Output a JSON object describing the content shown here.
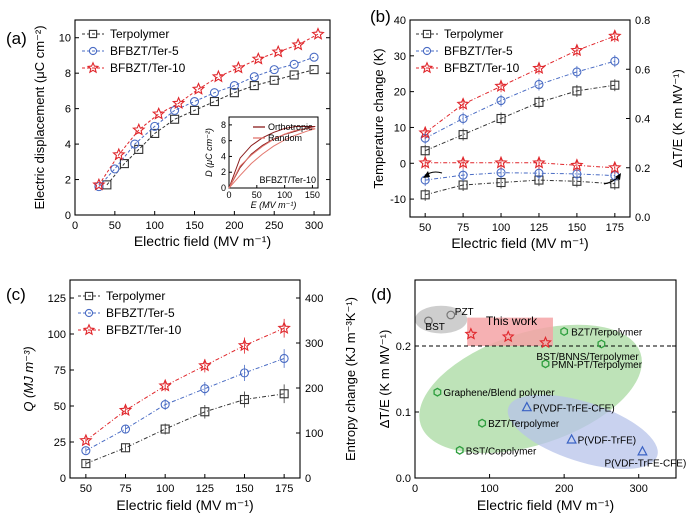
{
  "chart_data": [
    {
      "id": "a",
      "panel_label": "(a)",
      "type": "line",
      "xlabel": "Electric field (MV m⁻¹)",
      "ylabel": "Electric displacement (μC cm⁻²)",
      "xlim": [
        0,
        320
      ],
      "ylim": [
        0,
        11
      ],
      "xticks": [
        0,
        50,
        100,
        150,
        200,
        250,
        300
      ],
      "yticks": [
        0,
        2,
        4,
        6,
        8,
        10
      ],
      "legend": "top-left",
      "series": [
        {
          "name": "Terpolymer",
          "marker": "square",
          "color": "#333333",
          "x": [
            40,
            62,
            80,
            100,
            125,
            150,
            175,
            200,
            225,
            250,
            275,
            300
          ],
          "y": [
            1.7,
            2.9,
            3.7,
            4.6,
            5.4,
            5.9,
            6.4,
            6.9,
            7.3,
            7.6,
            7.9,
            8.2
          ]
        },
        {
          "name": "BFBZT/Ter-5",
          "marker": "circle",
          "color": "#4a6cc4",
          "x": [
            30,
            50,
            75,
            100,
            125,
            150,
            175,
            200,
            225,
            250,
            275,
            300
          ],
          "y": [
            1.6,
            2.6,
            4.0,
            5.0,
            5.9,
            6.4,
            6.9,
            7.3,
            7.8,
            8.2,
            8.5,
            8.9
          ]
        },
        {
          "name": "BFBZT/Ter-10",
          "marker": "star",
          "color": "#e0262b",
          "x": [
            30,
            55,
            80,
            105,
            130,
            155,
            180,
            205,
            230,
            255,
            280,
            305
          ],
          "y": [
            1.7,
            3.4,
            4.8,
            5.7,
            6.3,
            7.1,
            7.8,
            8.3,
            8.8,
            9.2,
            9.6,
            10.2
          ]
        }
      ],
      "inset": {
        "type": "line",
        "xlabel": "E (MV m⁻¹)",
        "ylabel": "D (μC cm⁻²)",
        "xlim": [
          0,
          160
        ],
        "ylim": [
          0,
          9
        ],
        "xticks": [
          0,
          50,
          100,
          150
        ],
        "yticks": [
          0,
          2,
          4,
          6,
          8
        ],
        "label": "BFBZT/Ter-10",
        "series": [
          {
            "name": "Orthotropic",
            "color": "#8a1c1c",
            "x": [
              0,
              20,
              40,
              60,
              80,
              100,
              120,
              140,
              155
            ],
            "y": [
              0,
              2.6,
              4.3,
              5.4,
              6.2,
              6.8,
              7.2,
              7.6,
              7.8
            ]
          },
          {
            "name": "Random",
            "color": "#e3776e",
            "x": [
              0,
              20,
              40,
              60,
              80,
              100,
              120,
              140,
              155
            ],
            "y": [
              0,
              1.6,
              3.1,
              4.3,
              5.3,
              6.1,
              6.7,
              7.2,
              7.5
            ]
          }
        ]
      }
    },
    {
      "id": "b",
      "panel_label": "(b)",
      "type": "line",
      "xlabel": "Electric field (MV m⁻¹)",
      "ylabel": "Temperature change (K)",
      "y2label": "ΔT/E (K m MV⁻¹)",
      "xlim": [
        40,
        185
      ],
      "ylim": [
        -15,
        40
      ],
      "y2lim": [
        0,
        0.8
      ],
      "xticks": [
        50,
        75,
        100,
        125,
        150,
        175
      ],
      "yticks": [
        -10,
        0,
        10,
        20,
        30,
        40
      ],
      "y2ticks": [
        0.0,
        0.2,
        0.4,
        0.6,
        0.8
      ],
      "legend": "top-left",
      "series": [
        {
          "name": "Terpolymer",
          "marker": "square",
          "color": "#333333",
          "axis": "left",
          "x": [
            50,
            75,
            100,
            125,
            150,
            175
          ],
          "y": [
            3.5,
            8.0,
            12.5,
            17.0,
            20.2,
            21.8
          ]
        },
        {
          "name": "BFBZT/Ter-5",
          "marker": "circle",
          "color": "#4a6cc4",
          "axis": "left",
          "x": [
            50,
            75,
            100,
            125,
            150,
            175
          ],
          "y": [
            7.0,
            12.5,
            17.5,
            22.0,
            25.5,
            28.5
          ]
        },
        {
          "name": "BFBZT/Ter-10",
          "marker": "star",
          "color": "#e0262b",
          "axis": "left",
          "x": [
            50,
            75,
            100,
            125,
            150,
            175
          ],
          "y": [
            8.5,
            16.5,
            21.5,
            26.5,
            31.5,
            35.5
          ]
        },
        {
          "marker": "square",
          "color": "#333333",
          "axis": "right",
          "x": [
            50,
            75,
            100,
            125,
            150,
            175
          ],
          "y": [
            0.09,
            0.13,
            0.14,
            0.15,
            0.145,
            0.135
          ]
        },
        {
          "marker": "circle",
          "color": "#4a6cc4",
          "axis": "right",
          "x": [
            50,
            75,
            100,
            125,
            150,
            175
          ],
          "y": [
            0.15,
            0.17,
            0.18,
            0.178,
            0.175,
            0.168
          ]
        },
        {
          "marker": "star",
          "color": "#e0262b",
          "axis": "right",
          "x": [
            50,
            75,
            100,
            125,
            150,
            175
          ],
          "y": [
            0.22,
            0.22,
            0.22,
            0.22,
            0.21,
            0.2
          ]
        }
      ]
    },
    {
      "id": "c",
      "panel_label": "(c)",
      "type": "line",
      "xlabel": "Electric field (MV m⁻¹)",
      "ylabel": "Q (MJ m⁻³)",
      "y2label": "Entropy change (KJ m⁻³K⁻¹)",
      "xlim": [
        40,
        185
      ],
      "ylim": [
        0,
        137.5
      ],
      "y2lim": [
        0,
        440
      ],
      "xticks": [
        50,
        75,
        100,
        125,
        150,
        175
      ],
      "yticks": [
        0,
        25,
        50,
        75,
        100,
        125
      ],
      "y2ticks": [
        0,
        100,
        200,
        300,
        400
      ],
      "legend": "top-left",
      "series": [
        {
          "name": "Terpolymer",
          "marker": "square",
          "color": "#333333",
          "x": [
            50,
            75,
            100,
            125,
            150,
            175
          ],
          "y": [
            10,
            21,
            34,
            46,
            54.5,
            58.5
          ]
        },
        {
          "name": "BFBZT/Ter-5",
          "marker": "circle",
          "color": "#4a6cc4",
          "x": [
            50,
            75,
            100,
            125,
            150,
            175
          ],
          "y": [
            19,
            34,
            51,
            62,
            73,
            83
          ]
        },
        {
          "name": "BFBZT/Ter-10",
          "marker": "star",
          "color": "#e0262b",
          "x": [
            50,
            75,
            100,
            125,
            150,
            175
          ],
          "y": [
            26,
            47,
            64,
            78,
            92,
            104
          ]
        }
      ]
    },
    {
      "id": "d",
      "panel_label": "(d)",
      "type": "scatter",
      "xlabel": "Electric field (MV m⁻¹)",
      "ylabel": "ΔT/E (K m MV⁻¹)",
      "xlim": [
        0,
        350
      ],
      "ylim": [
        0,
        0.3
      ],
      "xticks": [
        0,
        100,
        200,
        300
      ],
      "yticks": [
        0.0,
        0.1,
        0.2
      ],
      "reference_line_y": 0.2,
      "points": [
        {
          "label": "BST",
          "x": 18,
          "y": 0.238,
          "marker": "circle-gray",
          "color": "#777777"
        },
        {
          "label": "PZT",
          "x": 48,
          "y": 0.247,
          "marker": "circle-gray",
          "color": "#777777"
        },
        {
          "label": "This work",
          "x": 75,
          "y": 0.218,
          "marker": "star",
          "color": "#e0262b"
        },
        {
          "label": "",
          "x": 125,
          "y": 0.214,
          "marker": "star",
          "color": "#e0262b"
        },
        {
          "label": "",
          "x": 175,
          "y": 0.205,
          "marker": "star",
          "color": "#e0262b"
        },
        {
          "label": "BZT/Terpolymer",
          "x": 200,
          "y": 0.222,
          "marker": "hexagon",
          "color": "#2e9e3e"
        },
        {
          "label": "BST/BNNS/Terpolymer",
          "x": 250,
          "y": 0.203,
          "marker": "hexagon",
          "color": "#2e9e3e"
        },
        {
          "label": "PMN-PT/Terpolymer",
          "x": 175,
          "y": 0.173,
          "marker": "hexagon",
          "color": "#2e9e3e"
        },
        {
          "label": "Graphene/Blend polymer",
          "x": 30,
          "y": 0.13,
          "marker": "hexagon",
          "color": "#2e9e3e"
        },
        {
          "label": "P(VDF-TrFE-CFE)",
          "x": 150,
          "y": 0.107,
          "marker": "triangle",
          "color": "#3a62c4"
        },
        {
          "label": "BZT/Terpolymer",
          "x": 90,
          "y": 0.083,
          "marker": "hexagon",
          "color": "#2e9e3e"
        },
        {
          "label": "P(VDF-TrFE)",
          "x": 210,
          "y": 0.058,
          "marker": "triangle",
          "color": "#3a62c4"
        },
        {
          "label": "BST/Copolymer",
          "x": 60,
          "y": 0.042,
          "marker": "hexagon",
          "color": "#2e9e3e"
        },
        {
          "label": "P(VDF-TrFE-CFE)",
          "x": 305,
          "y": 0.04,
          "marker": "triangle",
          "color": "#3a62c4"
        }
      ],
      "regions": [
        {
          "color": "#bdbdbd",
          "cx": 35,
          "cy": 0.24,
          "rx": 35,
          "ry": 0.021
        },
        {
          "color": "#a8d9a0",
          "cx": 155,
          "cy": 0.135,
          "rx": 155,
          "ry": 0.085,
          "rotate": -18
        },
        {
          "color": "#b7c3ea",
          "cx": 225,
          "cy": 0.07,
          "rx": 105,
          "ry": 0.045,
          "rotate": 18
        },
        {
          "color": "#f4a3a6",
          "x0": 70,
          "x1": 185,
          "y0": 0.2,
          "y1": 0.243
        }
      ]
    }
  ]
}
